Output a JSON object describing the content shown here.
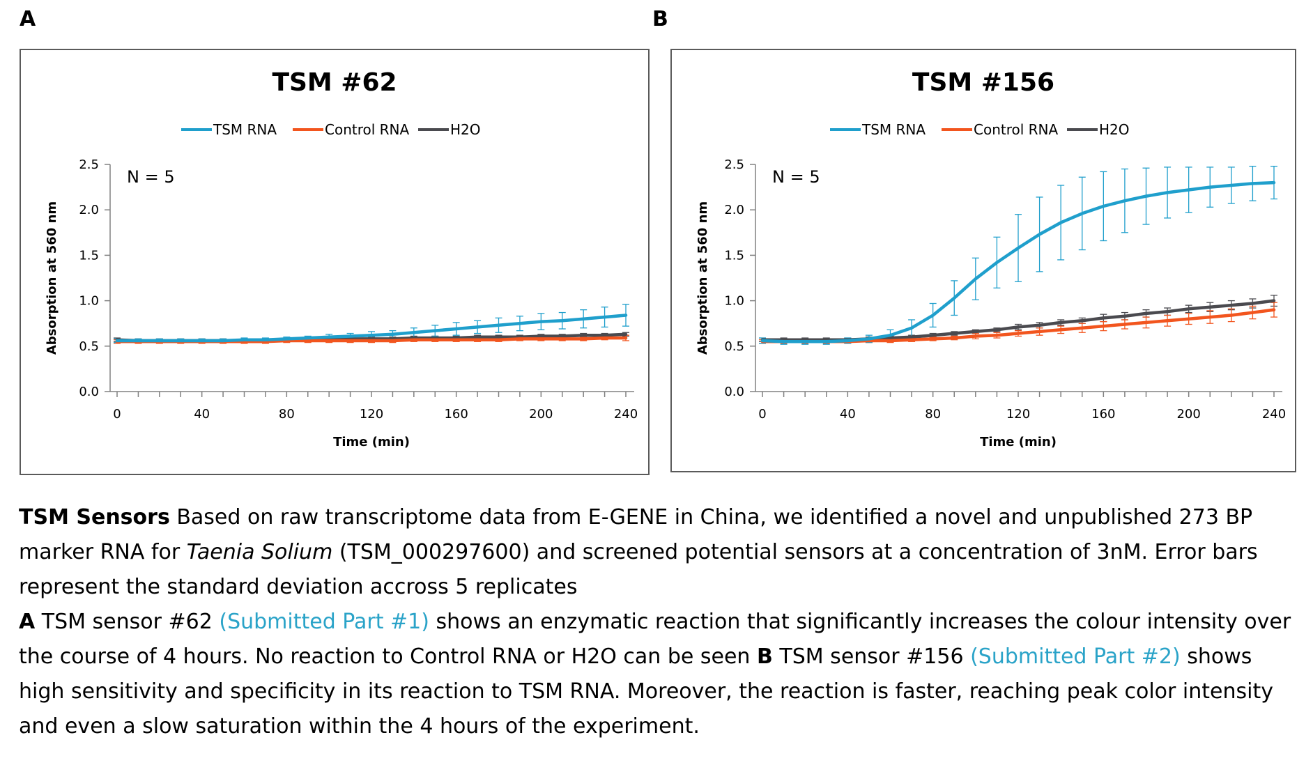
{
  "panels": {
    "a_letter": "A",
    "b_letter": "B"
  },
  "colors": {
    "tsm_rna": "#1f9fcc",
    "control_rna": "#f2551e",
    "h2o": "#4a4a4f"
  },
  "chart_data": [
    {
      "type": "line",
      "title": "TSM #62",
      "xlabel": "Time (min)",
      "ylabel": "Absorption at 560 nm",
      "annotation": "N = 5",
      "xlim": [
        0,
        240
      ],
      "ylim": [
        0,
        2.5
      ],
      "xticks": [
        "0",
        "40",
        "80",
        "120",
        "160",
        "200",
        "240"
      ],
      "yticks": [
        "0.0",
        "0.5",
        "1.0",
        "1.5",
        "2.0",
        "2.5"
      ],
      "legend_position": "top",
      "x": [
        0,
        10,
        20,
        30,
        40,
        50,
        60,
        70,
        80,
        90,
        100,
        110,
        120,
        130,
        140,
        150,
        160,
        170,
        180,
        190,
        200,
        210,
        220,
        230,
        240
      ],
      "series": [
        {
          "name": "TSM RNA",
          "color": "#1f9fcc",
          "values": [
            0.56,
            0.56,
            0.56,
            0.56,
            0.56,
            0.56,
            0.57,
            0.57,
            0.58,
            0.59,
            0.6,
            0.61,
            0.62,
            0.63,
            0.65,
            0.67,
            0.69,
            0.71,
            0.73,
            0.75,
            0.77,
            0.78,
            0.8,
            0.82,
            0.84
          ],
          "errors": [
            0.02,
            0.02,
            0.02,
            0.02,
            0.02,
            0.02,
            0.02,
            0.02,
            0.02,
            0.02,
            0.03,
            0.03,
            0.04,
            0.04,
            0.05,
            0.06,
            0.07,
            0.07,
            0.08,
            0.08,
            0.09,
            0.09,
            0.1,
            0.11,
            0.12
          ]
        },
        {
          "name": "Control RNA",
          "color": "#f2551e",
          "values": [
            0.55,
            0.55,
            0.55,
            0.55,
            0.55,
            0.55,
            0.55,
            0.55,
            0.56,
            0.56,
            0.56,
            0.56,
            0.56,
            0.56,
            0.57,
            0.57,
            0.57,
            0.57,
            0.57,
            0.58,
            0.58,
            0.58,
            0.58,
            0.59,
            0.59
          ],
          "errors": [
            0.02,
            0.02,
            0.02,
            0.02,
            0.02,
            0.02,
            0.02,
            0.02,
            0.02,
            0.02,
            0.02,
            0.02,
            0.02,
            0.02,
            0.02,
            0.02,
            0.02,
            0.02,
            0.02,
            0.02,
            0.02,
            0.02,
            0.02,
            0.02,
            0.03
          ]
        },
        {
          "name": "H2O",
          "color": "#4a4a4f",
          "values": [
            0.57,
            0.56,
            0.56,
            0.56,
            0.56,
            0.56,
            0.56,
            0.56,
            0.57,
            0.57,
            0.57,
            0.58,
            0.58,
            0.58,
            0.59,
            0.59,
            0.59,
            0.6,
            0.6,
            0.6,
            0.61,
            0.61,
            0.62,
            0.62,
            0.63
          ],
          "errors": [
            0.02,
            0.02,
            0.02,
            0.02,
            0.02,
            0.02,
            0.02,
            0.02,
            0.02,
            0.02,
            0.02,
            0.02,
            0.02,
            0.02,
            0.02,
            0.02,
            0.02,
            0.02,
            0.02,
            0.02,
            0.02,
            0.02,
            0.02,
            0.02,
            0.02
          ]
        }
      ]
    },
    {
      "type": "line",
      "title": "TSM #156",
      "xlabel": "Time (min)",
      "ylabel": "Absorption at 560 nm",
      "annotation": "N = 5",
      "xlim": [
        0,
        240
      ],
      "ylim": [
        0,
        2.5
      ],
      "xticks": [
        "0",
        "40",
        "80",
        "120",
        "160",
        "200",
        "240"
      ],
      "yticks": [
        "0.0",
        "0.5",
        "1.0",
        "1.5",
        "2.0",
        "2.5"
      ],
      "legend_position": "top",
      "x": [
        0,
        10,
        20,
        30,
        40,
        50,
        60,
        70,
        80,
        90,
        100,
        110,
        120,
        130,
        140,
        150,
        160,
        170,
        180,
        190,
        200,
        210,
        220,
        230,
        240
      ],
      "series": [
        {
          "name": "TSM RNA",
          "color": "#1f9fcc",
          "values": [
            0.56,
            0.55,
            0.55,
            0.55,
            0.56,
            0.58,
            0.62,
            0.7,
            0.84,
            1.03,
            1.24,
            1.42,
            1.58,
            1.73,
            1.86,
            1.96,
            2.04,
            2.1,
            2.15,
            2.19,
            2.22,
            2.25,
            2.27,
            2.29,
            2.3
          ],
          "errors": [
            0.03,
            0.03,
            0.03,
            0.03,
            0.03,
            0.04,
            0.06,
            0.09,
            0.13,
            0.19,
            0.23,
            0.28,
            0.37,
            0.41,
            0.41,
            0.4,
            0.38,
            0.35,
            0.31,
            0.28,
            0.25,
            0.22,
            0.2,
            0.19,
            0.18
          ]
        },
        {
          "name": "Control RNA",
          "color": "#f2551e",
          "values": [
            0.55,
            0.55,
            0.55,
            0.55,
            0.55,
            0.56,
            0.56,
            0.57,
            0.58,
            0.59,
            0.61,
            0.62,
            0.64,
            0.66,
            0.68,
            0.7,
            0.72,
            0.74,
            0.76,
            0.78,
            0.8,
            0.82,
            0.84,
            0.87,
            0.9
          ],
          "errors": [
            0.02,
            0.02,
            0.02,
            0.02,
            0.02,
            0.02,
            0.02,
            0.02,
            0.02,
            0.02,
            0.03,
            0.03,
            0.03,
            0.04,
            0.04,
            0.05,
            0.05,
            0.05,
            0.06,
            0.06,
            0.06,
            0.07,
            0.07,
            0.07,
            0.08
          ]
        },
        {
          "name": "H2O",
          "color": "#4a4a4f",
          "values": [
            0.57,
            0.57,
            0.57,
            0.57,
            0.57,
            0.58,
            0.59,
            0.6,
            0.62,
            0.64,
            0.66,
            0.68,
            0.71,
            0.73,
            0.76,
            0.78,
            0.81,
            0.83,
            0.86,
            0.88,
            0.91,
            0.93,
            0.95,
            0.97,
            1.0
          ],
          "errors": [
            0.02,
            0.02,
            0.02,
            0.02,
            0.02,
            0.02,
            0.02,
            0.02,
            0.02,
            0.02,
            0.02,
            0.02,
            0.03,
            0.03,
            0.03,
            0.03,
            0.04,
            0.04,
            0.04,
            0.04,
            0.04,
            0.05,
            0.05,
            0.05,
            0.06
          ]
        }
      ]
    }
  ],
  "caption": {
    "p1_bold": "TSM Sensors",
    "p1_a": " Based on raw transcriptome data from E-GENE in China, we identified a novel and unpublished 273 BP marker RNA for ",
    "p1_italic": "Taenia Solium",
    "p1_b": " (TSM_000297600) and screened potential sensors at a concentration of 3nM. Error bars represent the standard deviation accross 5 replicates",
    "p2_a_bold": "A",
    "p2_a_text": " TSM sensor #62 ",
    "p2_a_link": "(Submitted Part #1)",
    "p2_a_rest": " shows an enzymatic reaction that significantly increases the colour intensity over the course of 4 hours. No reaction to Control RNA or H2O can be seen ",
    "p2_b_bold": "B",
    "p2_b_text": " TSM sensor #156 ",
    "p2_b_link": "(Submitted Part #2)",
    "p2_b_rest": " shows high sensitivity and specificity in its reaction to TSM RNA. Moreover, the reaction is faster, reaching peak color intensity and even a slow saturation within the 4 hours of the experiment."
  }
}
